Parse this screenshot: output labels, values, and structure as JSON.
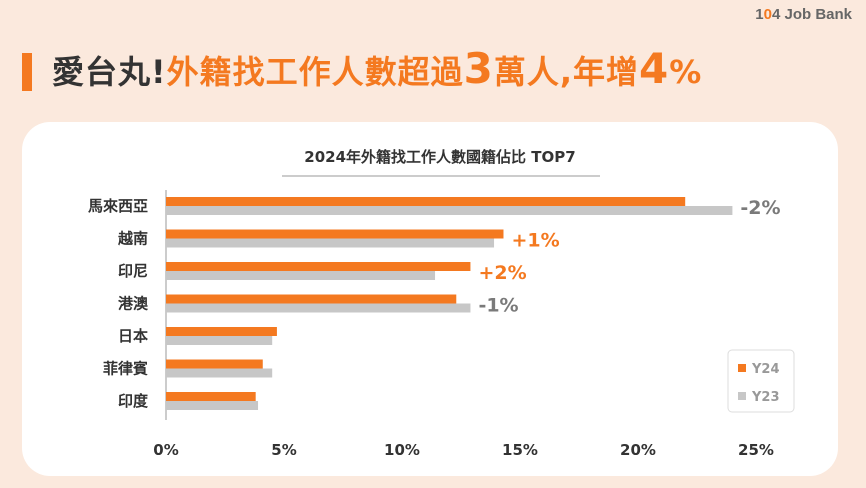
{
  "header": {
    "logo_prefix": "1",
    "logo_o": "0",
    "logo_suffix": "4 Job Bank",
    "title_part1": "愛台丸!",
    "title_part2": "外籍找工作人數超過",
    "title_num1": "3",
    "title_part3": "萬人,年增",
    "title_num2": "4",
    "title_pct": "%"
  },
  "colors": {
    "accent": "#f47920",
    "gray_bar": "#c7c7c7",
    "text_dark": "#333333",
    "text_gray": "#7a7a7a",
    "background": "#fbe9dd"
  },
  "chart_data": {
    "type": "bar",
    "orientation": "horizontal",
    "title": "2024年外籍找工作人數國籍佔比 TOP7",
    "categories": [
      "馬來西亞",
      "越南",
      "印尼",
      "港澳",
      "日本",
      "菲律賓",
      "印度"
    ],
    "series": [
      {
        "name": "Y24",
        "color": "#f47920",
        "values": [
          22.0,
          14.3,
          12.9,
          12.3,
          4.7,
          4.1,
          3.8
        ]
      },
      {
        "name": "Y23",
        "color": "#c7c7c7",
        "values": [
          24.0,
          13.9,
          11.4,
          12.9,
          4.5,
          4.5,
          3.9
        ]
      }
    ],
    "annotations": [
      {
        "category": "馬來西亞",
        "text": "-2%",
        "color": "#7a7a7a"
      },
      {
        "category": "越南",
        "text": "+1%",
        "color": "#f47920"
      },
      {
        "category": "印尼",
        "text": "+2%",
        "color": "#f47920"
      },
      {
        "category": "港澳",
        "text": "-1%",
        "color": "#7a7a7a"
      }
    ],
    "xlim": [
      0,
      25
    ],
    "xticks": [
      "0%",
      "5%",
      "10%",
      "15%",
      "20%",
      "25%"
    ],
    "grid": false,
    "legend_position": "bottom-right"
  }
}
